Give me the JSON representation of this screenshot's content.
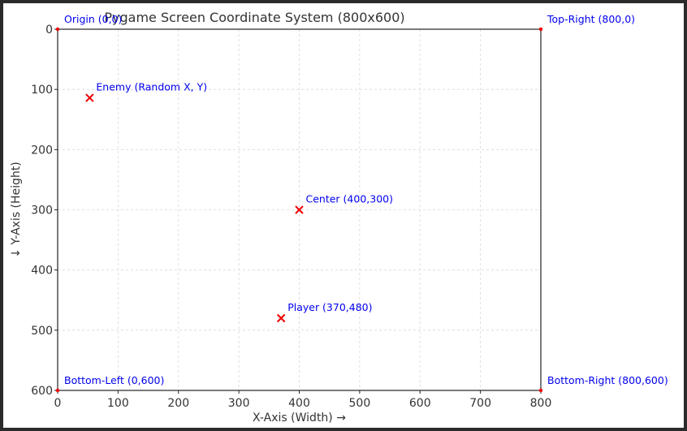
{
  "chart_data": {
    "type": "scatter",
    "title": "Pygame Screen Coordinate System (800x600)",
    "xlabel": "X-Axis (Width) →",
    "ylabel": "↓ Y-Axis (Height)",
    "xlim": [
      0,
      800
    ],
    "ylim": [
      0,
      600
    ],
    "y_inverted": true,
    "grid": true,
    "x_ticks": [
      0,
      100,
      200,
      300,
      400,
      500,
      600,
      700,
      800
    ],
    "y_ticks": [
      0,
      100,
      200,
      300,
      400,
      500,
      600
    ],
    "marker_color": "#ee0000",
    "annotation_color": "#0000ee",
    "points": [
      {
        "x": 53,
        "y": 114,
        "label": "Enemy (Random X, Y)",
        "marker": "x"
      },
      {
        "x": 400,
        "y": 300,
        "label": "Center (400,300)",
        "marker": "x"
      },
      {
        "x": 370,
        "y": 480,
        "label": "Player (370,480)",
        "marker": "x"
      }
    ],
    "corners": [
      {
        "x": 0,
        "y": 0,
        "label": "Origin (0,0)"
      },
      {
        "x": 800,
        "y": 0,
        "label": "Top-Right (800,0)"
      },
      {
        "x": 0,
        "y": 600,
        "label": "Bottom-Left (0,600)"
      },
      {
        "x": 800,
        "y": 600,
        "label": "Bottom-Right (800,600)"
      }
    ]
  }
}
